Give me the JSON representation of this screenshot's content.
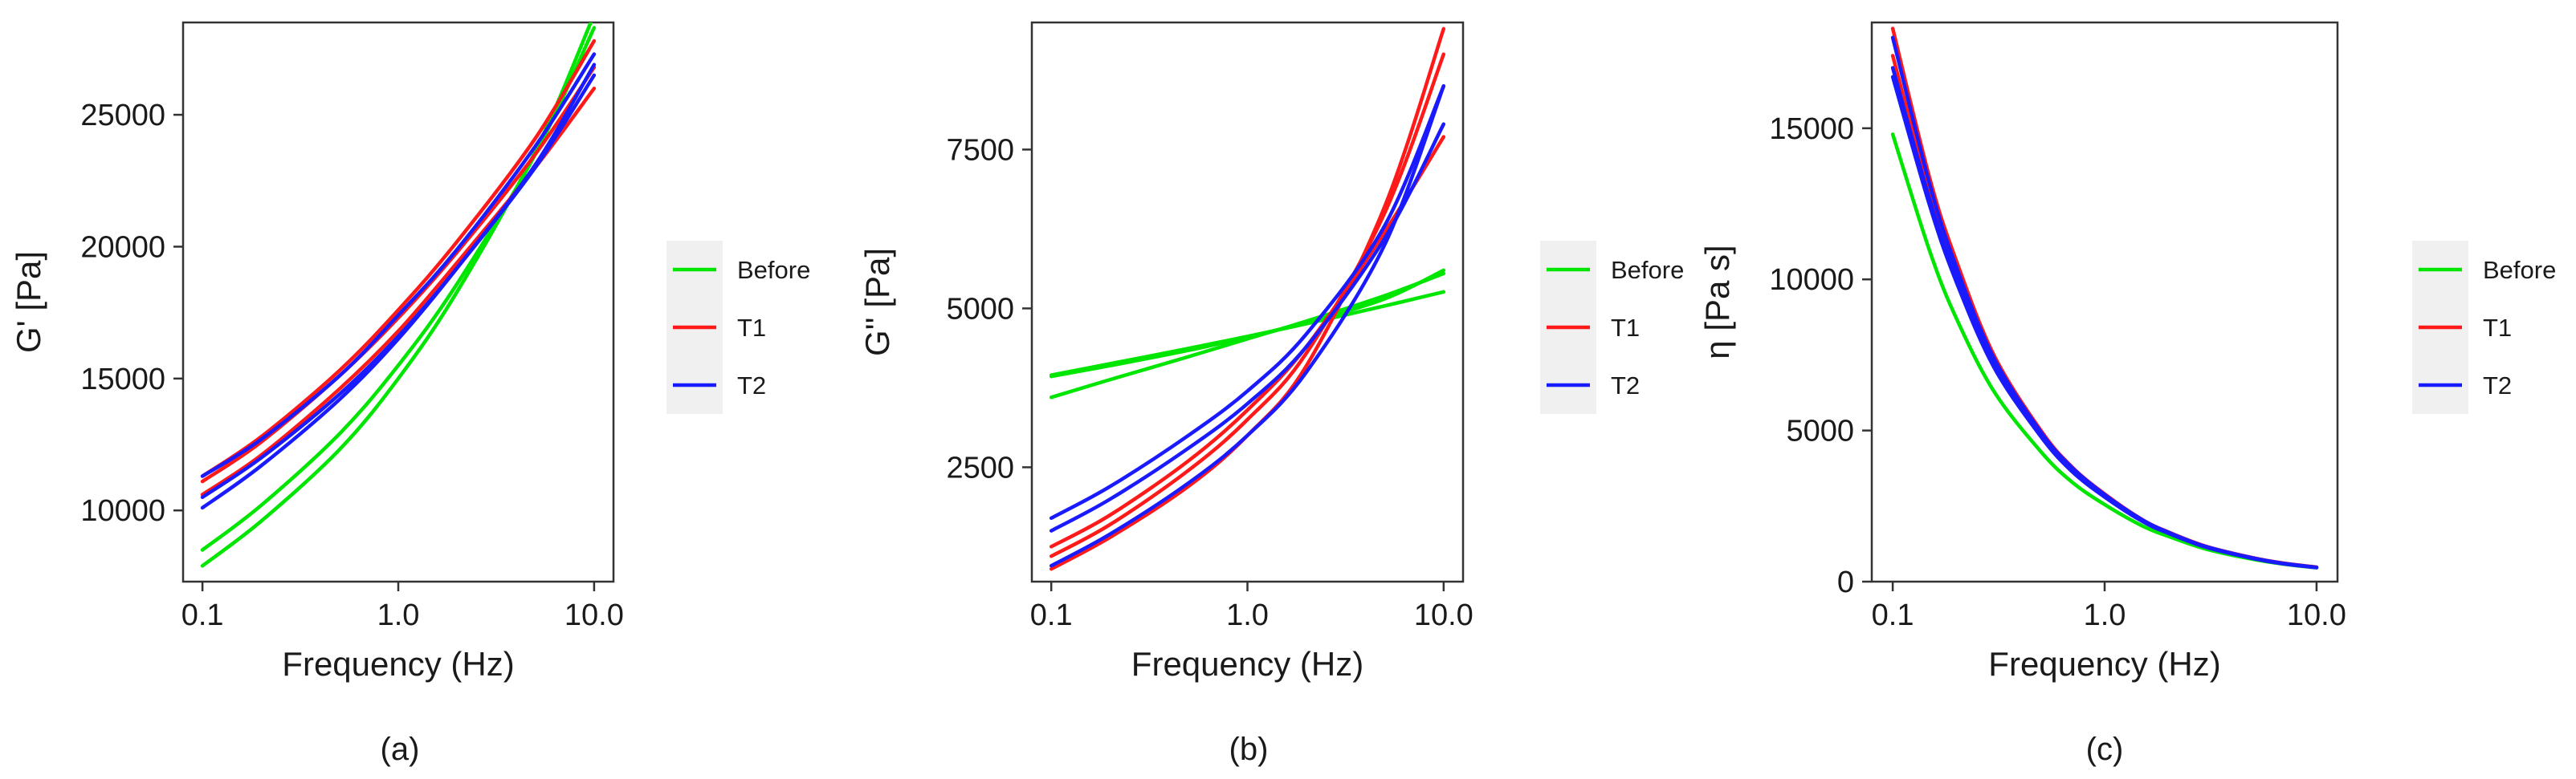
{
  "series_colors": {
    "Before": "#00e600",
    "T1": "#ff1a1a",
    "T2": "#1a1aff"
  },
  "chart_data": [
    {
      "type": "line",
      "panel_label": "(a)",
      "xlabel": "Frequency (Hz)",
      "ylabel": "G' [Pa]",
      "x_scale": "log10",
      "xlim": [
        0.1,
        10.0
      ],
      "ylim": [
        7300,
        28500
      ],
      "xticks": [
        "0.1",
        "1.0",
        "10.0"
      ],
      "yticks": [
        "10000",
        "15000",
        "20000",
        "25000"
      ],
      "x": [
        0.1,
        0.2,
        0.5,
        1.0,
        2.0,
        5.0,
        10.0
      ],
      "legend_entries": [
        "Before",
        "T1",
        "T2"
      ],
      "legend_position": "right",
      "series": [
        {
          "name": "Before",
          "values": [
            7900,
            9600,
            12300,
            15000,
            18300,
            23600,
            28800
          ]
        },
        {
          "name": "Before",
          "values": [
            8500,
            10200,
            12900,
            15500,
            18600,
            23500,
            28300
          ]
        },
        {
          "name": "T1",
          "values": [
            11300,
            12800,
            15300,
            17600,
            20200,
            24100,
            27800
          ]
        },
        {
          "name": "T1",
          "values": [
            11100,
            12600,
            15100,
            17300,
            19800,
            23500,
            26800
          ]
        },
        {
          "name": "T1",
          "values": [
            10600,
            12100,
            14600,
            16800,
            19400,
            23000,
            26000
          ]
        },
        {
          "name": "T2",
          "values": [
            11300,
            12700,
            15100,
            17400,
            19900,
            23800,
            27300
          ]
        },
        {
          "name": "T2",
          "values": [
            10500,
            12000,
            14400,
            16600,
            19200,
            23000,
            26500
          ]
        },
        {
          "name": "T2",
          "values": [
            10100,
            11700,
            14200,
            16500,
            19200,
            23100,
            26900
          ]
        }
      ]
    },
    {
      "type": "line",
      "panel_label": "(b)",
      "xlabel": "Frequency (Hz)",
      "ylabel": "G'' [Pa]",
      "x_scale": "log10",
      "xlim": [
        0.1,
        10.0
      ],
      "ylim": [
        700,
        9500
      ],
      "xticks": [
        "0.1",
        "1.0",
        "10.0"
      ],
      "yticks": [
        "2500",
        "5000",
        "7500"
      ],
      "x": [
        0.1,
        0.2,
        0.5,
        1.0,
        2.0,
        5.0,
        10.0
      ],
      "legend_entries": [
        "Before",
        "T1",
        "T2"
      ],
      "legend_position": "right",
      "series": [
        {
          "name": "Before",
          "values": [
            3950,
            4130,
            4370,
            4560,
            4760,
            5040,
            5260
          ]
        },
        {
          "name": "Before",
          "values": [
            3600,
            3880,
            4240,
            4520,
            4800,
            5200,
            5550
          ]
        },
        {
          "name": "Before",
          "values": [
            3930,
            4100,
            4340,
            4550,
            4780,
            5150,
            5600
          ]
        },
        {
          "name": "T1",
          "values": [
            900,
            1400,
            2200,
            3000,
            4100,
            6600,
            9400
          ]
        },
        {
          "name": "T1",
          "values": [
            1100,
            1600,
            2450,
            3250,
            4300,
            6500,
            9000
          ]
        },
        {
          "name": "T1",
          "values": [
            1250,
            1750,
            2600,
            3400,
            4400,
            6200,
            7700
          ]
        },
        {
          "name": "T2",
          "values": [
            1700,
            2200,
            3000,
            3700,
            4600,
            6300,
            8500
          ]
        },
        {
          "name": "T2",
          "values": [
            1500,
            2000,
            2800,
            3500,
            4400,
            6100,
            7900
          ]
        },
        {
          "name": "T2",
          "values": [
            950,
            1450,
            2250,
            3000,
            4000,
            6000,
            8500
          ]
        }
      ]
    },
    {
      "type": "line",
      "panel_label": "(c)",
      "xlabel": "Frequency (Hz)",
      "ylabel": "η [Pa s]",
      "x_scale": "log10",
      "xlim": [
        0.1,
        10.0
      ],
      "ylim": [
        0,
        18500
      ],
      "xticks": [
        "0.1",
        "1.0",
        "10.0"
      ],
      "yticks": [
        "0",
        "5000",
        "10000",
        "15000"
      ],
      "x": [
        0.1,
        0.15,
        0.2,
        0.3,
        0.5,
        0.7,
        1.0,
        1.5,
        2.0,
        3.0,
        5.0,
        7.0,
        10.0
      ],
      "legend_entries": [
        "Before",
        "T1",
        "T2"
      ],
      "legend_position": "right",
      "series": [
        {
          "name": "Before",
          "values": [
            14800,
            10900,
            8700,
            6300,
            4300,
            3300,
            2550,
            1850,
            1500,
            1080,
            740,
            580,
            460
          ]
        },
        {
          "name": "T1",
          "values": [
            18300,
            13300,
            10600,
            7500,
            5000,
            3800,
            2900,
            2060,
            1640,
            1170,
            790,
            610,
            480
          ]
        },
        {
          "name": "T1",
          "values": [
            17400,
            12800,
            10200,
            7300,
            4900,
            3750,
            2870,
            2040,
            1630,
            1160,
            780,
            600,
            470
          ]
        },
        {
          "name": "T2",
          "values": [
            17000,
            12600,
            10100,
            7250,
            4900,
            3750,
            2870,
            2050,
            1630,
            1160,
            780,
            600,
            470
          ]
        },
        {
          "name": "T2",
          "values": [
            16700,
            12400,
            9900,
            7100,
            4800,
            3650,
            2800,
            2000,
            1600,
            1140,
            770,
            590,
            465
          ]
        },
        {
          "name": "T2",
          "values": [
            18000,
            13100,
            10400,
            7400,
            4950,
            3780,
            2880,
            2050,
            1630,
            1160,
            780,
            600,
            470
          ]
        }
      ]
    }
  ]
}
